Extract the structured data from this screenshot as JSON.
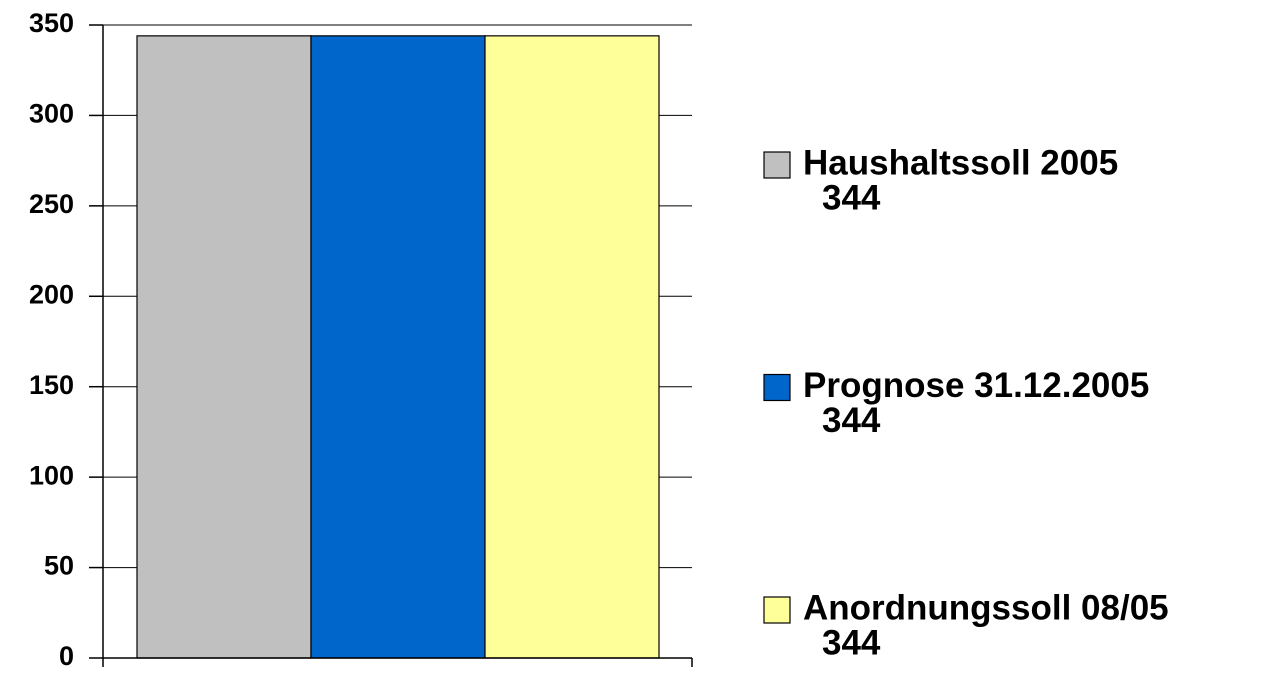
{
  "chart_data": {
    "type": "bar",
    "series": [
      {
        "name": "Haushaltssoll 2005",
        "color": "#c0c0c0",
        "values": [
          344
        ]
      },
      {
        "name": "Prognose 31.12.2005",
        "color": "#0066cc",
        "values": [
          344
        ]
      },
      {
        "name": "Anordnungssoll 08/05",
        "color": "#ffff99",
        "values": [
          344
        ]
      }
    ],
    "ylim": [
      0,
      350
    ],
    "yticks": [
      0,
      50,
      100,
      150,
      200,
      250,
      300,
      350
    ],
    "grid": true,
    "legend": "right"
  }
}
